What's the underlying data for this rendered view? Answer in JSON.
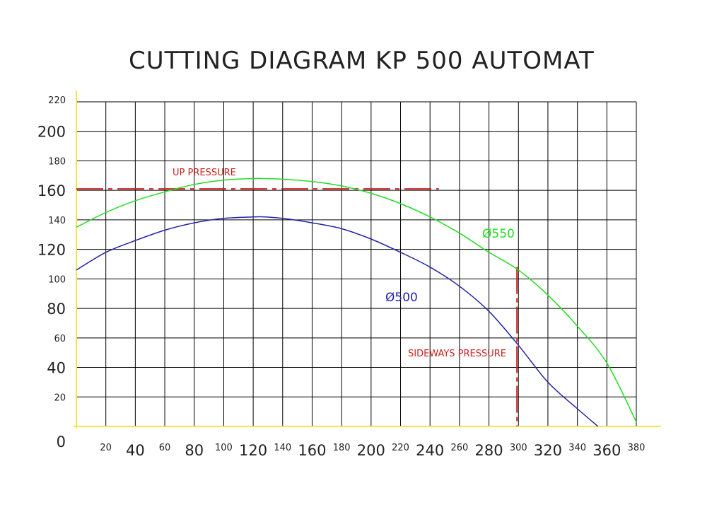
{
  "chart_data": {
    "type": "line",
    "title": "CUTTING DIAGRAM  KP 500 AUTOMAT",
    "xlim": [
      0,
      380
    ],
    "ylim": [
      0,
      220
    ],
    "x_ticks": [
      {
        "value": 20,
        "label": "20",
        "size": "small"
      },
      {
        "value": 40,
        "label": "40",
        "size": "big"
      },
      {
        "value": 60,
        "label": "60",
        "size": "small"
      },
      {
        "value": 80,
        "label": "80",
        "size": "big"
      },
      {
        "value": 100,
        "label": "100",
        "size": "small"
      },
      {
        "value": 120,
        "label": "120",
        "size": "big"
      },
      {
        "value": 140,
        "label": "140",
        "size": "small"
      },
      {
        "value": 160,
        "label": "160",
        "size": "big"
      },
      {
        "value": 180,
        "label": "180",
        "size": "small"
      },
      {
        "value": 200,
        "label": "200",
        "size": "big"
      },
      {
        "value": 220,
        "label": "220",
        "size": "small"
      },
      {
        "value": 240,
        "label": "240",
        "size": "big"
      },
      {
        "value": 260,
        "label": "260",
        "size": "small"
      },
      {
        "value": 280,
        "label": "280",
        "size": "big"
      },
      {
        "value": 300,
        "label": "300",
        "size": "small"
      },
      {
        "value": 320,
        "label": "320",
        "size": "big"
      },
      {
        "value": 340,
        "label": "340",
        "size": "small"
      },
      {
        "value": 360,
        "label": "360",
        "size": "big"
      },
      {
        "value": 380,
        "label": "380",
        "size": "small"
      }
    ],
    "y_ticks": [
      {
        "value": 0,
        "label": "0",
        "size": "big"
      },
      {
        "value": 20,
        "label": "20",
        "size": "small"
      },
      {
        "value": 40,
        "label": "40",
        "size": "big"
      },
      {
        "value": 60,
        "label": "60",
        "size": "small"
      },
      {
        "value": 80,
        "label": "80",
        "size": "big"
      },
      {
        "value": 100,
        "label": "100",
        "size": "small"
      },
      {
        "value": 120,
        "label": "120",
        "size": "big"
      },
      {
        "value": 140,
        "label": "140",
        "size": "small"
      },
      {
        "value": 160,
        "label": "160",
        "size": "big"
      },
      {
        "value": 180,
        "label": "180",
        "size": "small"
      },
      {
        "value": 200,
        "label": "200",
        "size": "big"
      },
      {
        "value": 220,
        "label": "220",
        "size": "small"
      }
    ],
    "grid": true,
    "series": [
      {
        "name": "Ø550",
        "color": "#22dd22",
        "x": [
          0,
          20,
          40,
          60,
          80,
          100,
          120,
          128,
          140,
          160,
          180,
          200,
          220,
          240,
          260,
          280,
          300,
          320,
          340,
          360,
          380
        ],
        "y": [
          135,
          145,
          153,
          159,
          164,
          167,
          168,
          168,
          167.5,
          166,
          163,
          158,
          151,
          142,
          131,
          118,
          106,
          89,
          68,
          43,
          3
        ]
      },
      {
        "name": "Ø500",
        "color": "#2222aa",
        "x": [
          0,
          20,
          40,
          60,
          80,
          100,
          120,
          128,
          140,
          160,
          180,
          200,
          220,
          240,
          260,
          280,
          300,
          320,
          340,
          354
        ],
        "y": [
          106,
          118,
          126,
          133,
          138,
          141,
          142,
          142,
          141,
          138,
          134,
          127,
          118,
          108,
          95,
          78,
          55,
          30,
          12,
          0
        ]
      }
    ],
    "annotations": [
      {
        "text": "UP PRESSURE",
        "kind": "horizontal-dashed",
        "value": 161,
        "from": 0,
        "to": 246,
        "color": "#cc2222"
      },
      {
        "text": "SIDEWAYS PRESSURE",
        "kind": "vertical-dashed",
        "value": 299,
        "from": 0,
        "to": 108,
        "color": "#cc2222"
      }
    ],
    "colors": {
      "axis": "#f2e64a",
      "grid": "#000000",
      "text": "#222222"
    }
  }
}
